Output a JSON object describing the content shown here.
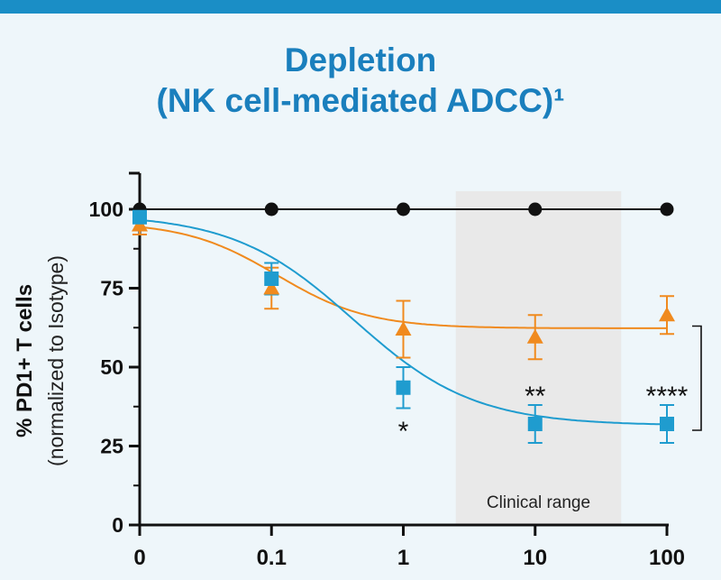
{
  "title_line1": "Depletion",
  "title_line2": "(NK cell-mediated ADCC)¹",
  "colors": {
    "title": "#1a7fbd",
    "black_series": "#111111",
    "orange_series": "#f08a1e",
    "blue_series": "#1f9ccf",
    "clinical_band": "#e9e9e9"
  },
  "chart_data": {
    "type": "line",
    "title": "",
    "xlabel": "",
    "ylabel": "% PD1+ T cells",
    "ylabel_sub": "(normalized to Isotype)",
    "x_scale": "log (with 0 on axis)",
    "categories": [
      "0",
      "0.1",
      "1",
      "10",
      "100"
    ],
    "ylim": [
      0,
      110
    ],
    "y_ticks": [
      "0",
      "25",
      "50",
      "75",
      "100"
    ],
    "grid": false,
    "legend": "none",
    "series": [
      {
        "marker": "circle",
        "color": "#111111",
        "values": [
          100,
          100,
          100,
          100,
          100
        ],
        "errors": [
          0,
          0,
          0,
          0,
          0
        ]
      },
      {
        "marker": "triangle",
        "color": "#f08a1e",
        "values": [
          95,
          75,
          62,
          59.5,
          66.5
        ],
        "errors": [
          3,
          6.5,
          9,
          7,
          6
        ]
      },
      {
        "marker": "square",
        "color": "#1f9ccf",
        "values": [
          97.5,
          78,
          43.5,
          32,
          32
        ],
        "errors": [
          1,
          5,
          6.5,
          6,
          6
        ]
      }
    ],
    "annotations": {
      "clinical_range_label": "Clinical range",
      "clinical_range_x": [
        2.5,
        45
      ],
      "significance": [
        {
          "x": "1",
          "text": "*"
        },
        {
          "x": "10",
          "text": "**"
        },
        {
          "x": "100",
          "text": "****"
        }
      ],
      "bracket_between": [
        "orange",
        "blue"
      ]
    }
  }
}
